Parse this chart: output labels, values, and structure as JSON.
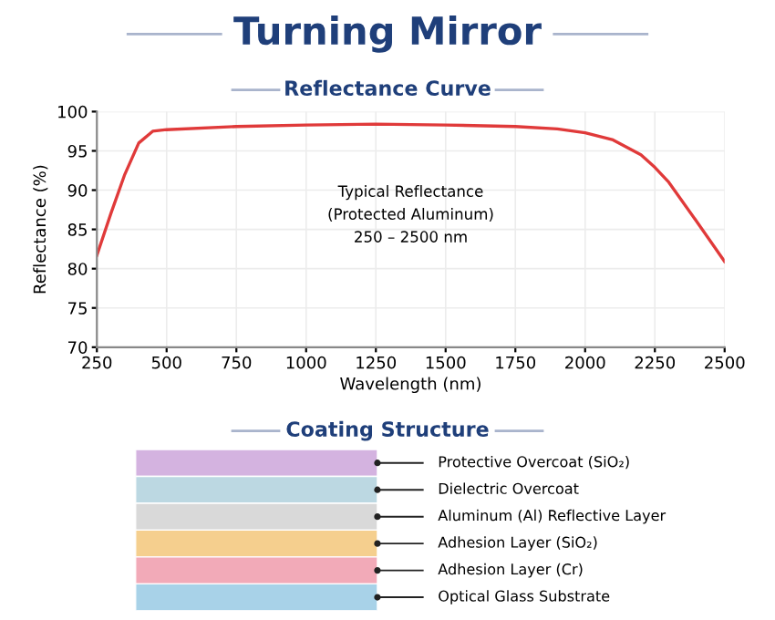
{
  "chart_data": [
    {
      "type": "line",
      "title": "Turning Mirror",
      "subtitle": "Reflectance Curve",
      "xlabel": "Wavelength (nm)",
      "ylabel": "Reflectance (%)",
      "x": [
        250,
        300,
        350,
        400,
        450,
        500,
        750,
        1000,
        1250,
        1500,
        1750,
        1900,
        2000,
        2100,
        2200,
        2250,
        2300,
        2400,
        2500
      ],
      "series": [
        {
          "color": "#e03a3a",
          "values": [
            81.7,
            87,
            92,
            96,
            97.5,
            97.7,
            98.1,
            98.3,
            98.4,
            98.3,
            98.1,
            97.8,
            97.3,
            96.4,
            94.5,
            92.9,
            91,
            86,
            80.9
          ]
        }
      ],
      "xlim": [
        250,
        2500
      ],
      "xticks": [
        250,
        500,
        750,
        1000,
        1250,
        1500,
        1750,
        2000,
        2250,
        2500
      ],
      "ylim": [
        70,
        100
      ],
      "yticks": [
        70,
        75,
        80,
        85,
        90,
        95,
        100
      ],
      "grid": true,
      "marker": "none",
      "line_style": "solid",
      "annotations": [
        "Typical Reflectance\n(Protected Aluminum)\n250 – 2500 nm"
      ]
    },
    {
      "type": "other",
      "title": "Coating Structure",
      "annotations": [
        "Protective Overcoat (SiO₂)",
        "Dielectric Overcoat",
        "Aluminum (Al) Reflective Layer",
        "Adhesion Layer (SiO₂)",
        "Adhesion Layer (Cr)",
        "Optical Glass Substrate"
      ],
      "colors": [
        "#d4b3e0",
        "#bcd8e2",
        "#d9d9d9",
        "#f5cf8e",
        "#f2aab8",
        "#a8d2e8"
      ]
    }
  ]
}
